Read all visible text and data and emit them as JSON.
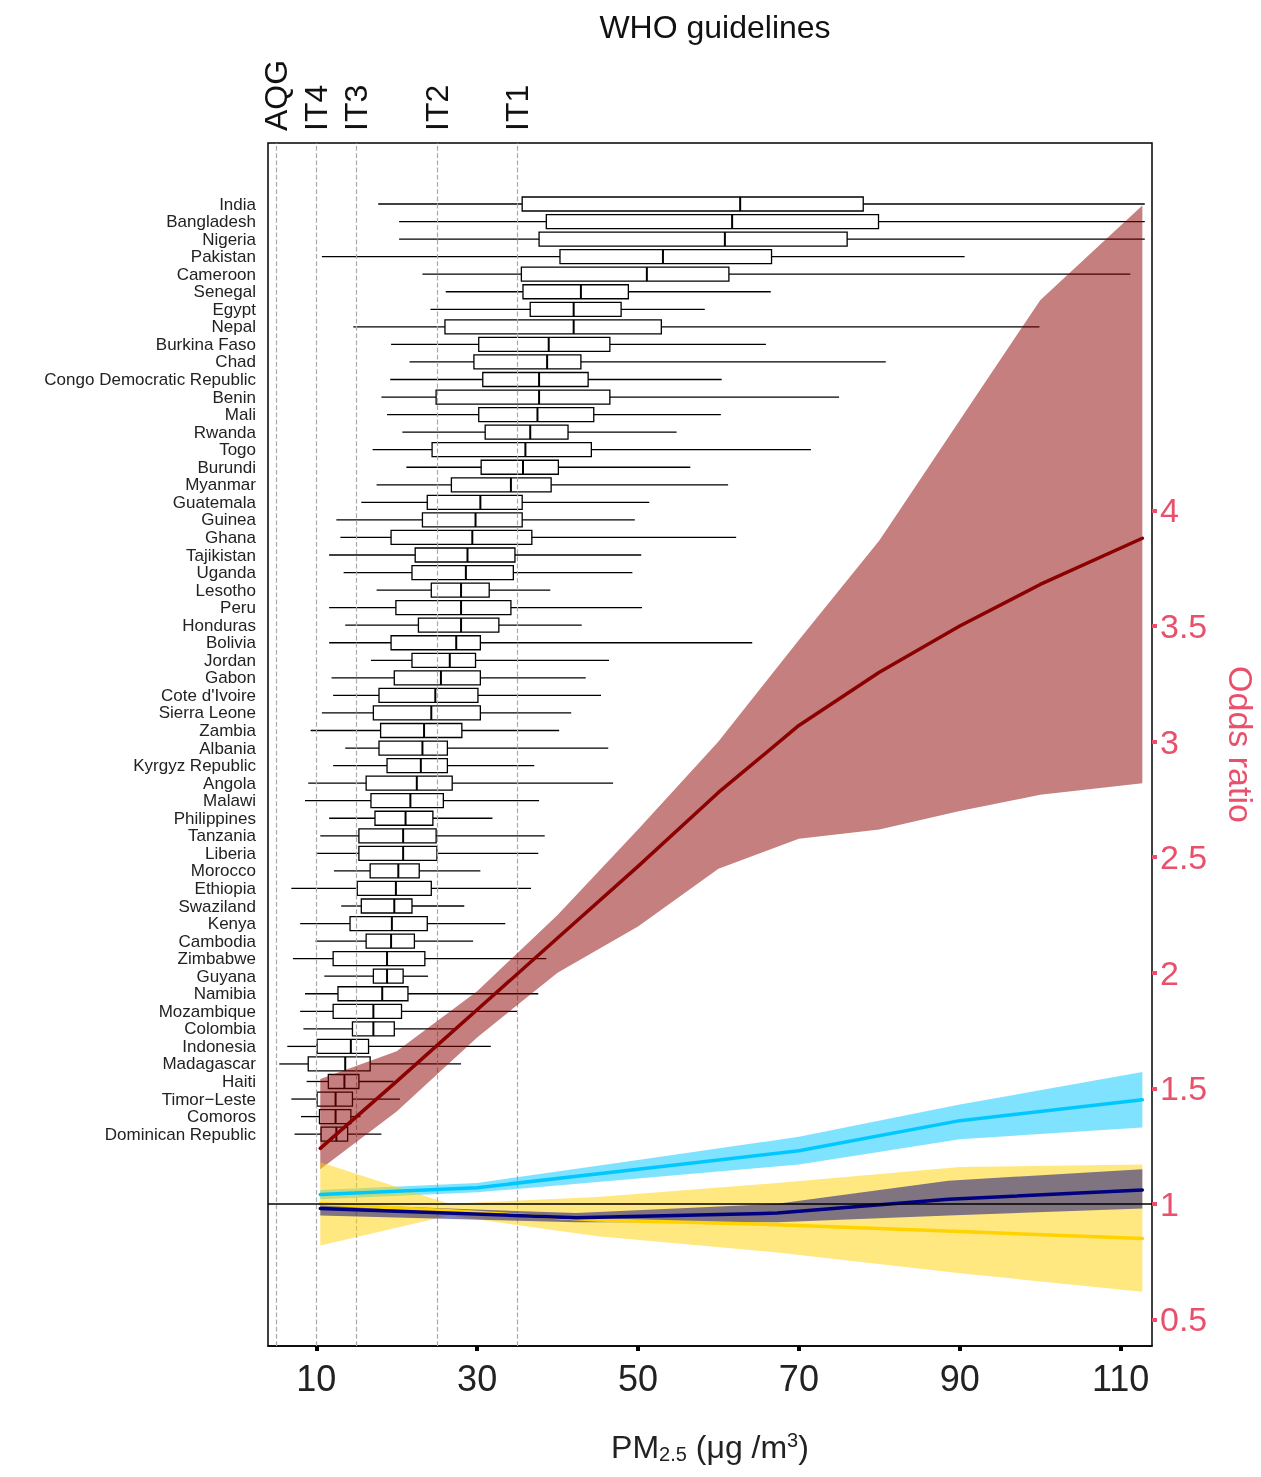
{
  "chart_data": [
    {
      "type": "box",
      "orientation": "horizontal",
      "title": "WHO guidelines",
      "tick_labels": "y",
      "categories": [
        "India",
        "Bangladesh",
        "Nigeria",
        "Pakistan",
        "Cameroon",
        "Senegal",
        "Egypt",
        "Nepal",
        "Burkina Faso",
        "Chad",
        "Congo Democratic Republic",
        "Benin",
        "Mali",
        "Rwanda",
        "Togo",
        "Burundi",
        "Myanmar",
        "Guatemala",
        "Guinea",
        "Ghana",
        "Tajikistan",
        "Uganda",
        "Lesotho",
        "Peru",
        "Honduras",
        "Bolivia",
        "Jordan",
        "Gabon",
        "Cote d'Ivoire",
        "Sierra Leone",
        "Zambia",
        "Albania",
        "Kyrgyz Republic",
        "Angola",
        "Malawi",
        "Philippines",
        "Tanzania",
        "Liberia",
        "Morocco",
        "Ethiopia",
        "Swaziland",
        "Kenya",
        "Cambodia",
        "Zimbabwe",
        "Guyana",
        "Namibia",
        "Mozambique",
        "Colombia",
        "Indonesia",
        "Madagascar",
        "Haiti",
        "Timor−Leste",
        "Comoros",
        "Dominican Republic"
      ],
      "xlim": [
        4,
        113.9
      ],
      "ref_lines": [
        {
          "axis": "x",
          "value": 5,
          "label": "AQG",
          "color": "#aaaaaa",
          "line_style": "dashed"
        },
        {
          "axis": "x",
          "value": 10,
          "label": "IT4",
          "color": "#aaaaaa",
          "line_style": "dashed"
        },
        {
          "axis": "x",
          "value": 15,
          "label": "IT3",
          "color": "#aaaaaa",
          "line_style": "dashed"
        },
        {
          "axis": "x",
          "value": 25,
          "label": "IT2",
          "color": "#aaaaaa",
          "line_style": "dashed"
        },
        {
          "axis": "x",
          "value": 35,
          "label": "IT1",
          "color": "#aaaaaa",
          "line_style": "dashed"
        }
      ],
      "series": [
        {
          "type": "box",
          "color": "#000000",
          "boxes": [
            {
              "low": 17.7,
              "q1": 35.6,
              "median": 62.7,
              "q3": 78,
              "high": 113
            },
            {
              "low": 20.3,
              "q1": 38.6,
              "median": 61.7,
              "q3": 79.9,
              "high": 113
            },
            {
              "low": 20.3,
              "q1": 37.7,
              "median": 60.8,
              "q3": 76,
              "high": 113
            },
            {
              "low": 10.7,
              "q1": 40.3,
              "median": 53.1,
              "q3": 66.6,
              "high": 90.6
            },
            {
              "low": 23.2,
              "q1": 35.5,
              "median": 51.1,
              "q3": 61.3,
              "high": 111.2
            },
            {
              "low": 26.1,
              "q1": 35.7,
              "median": 42.9,
              "q3": 48.8,
              "high": 66.5
            },
            {
              "low": 24.2,
              "q1": 36.6,
              "median": 42,
              "q3": 47.9,
              "high": 58.3
            },
            {
              "low": 14.6,
              "q1": 26,
              "median": 42,
              "q3": 52.9,
              "high": 99.9
            },
            {
              "low": 19.3,
              "q1": 30.2,
              "median": 38.9,
              "q3": 46.5,
              "high": 65.9
            },
            {
              "low": 21.6,
              "q1": 29.6,
              "median": 38.7,
              "q3": 42.9,
              "high": 80.8
            },
            {
              "low": 19.2,
              "q1": 30.7,
              "median": 37.7,
              "q3": 43.8,
              "high": 60.4
            },
            {
              "low": 18.1,
              "q1": 24.9,
              "median": 37.7,
              "q3": 46.5,
              "high": 75
            },
            {
              "low": 18.8,
              "q1": 30.2,
              "median": 37.5,
              "q3": 44.5,
              "high": 60.3
            },
            {
              "low": 20.7,
              "q1": 31,
              "median": 36.6,
              "q3": 41.3,
              "high": 54.8
            },
            {
              "low": 17,
              "q1": 24.4,
              "median": 36,
              "q3": 44.2,
              "high": 71.5
            },
            {
              "low": 21.2,
              "q1": 30.5,
              "median": 35.7,
              "q3": 40.1,
              "high": 56.5
            },
            {
              "low": 17.5,
              "q1": 26.8,
              "median": 34.2,
              "q3": 39.2,
              "high": 61.2
            },
            {
              "low": 15.6,
              "q1": 23.8,
              "median": 30.4,
              "q3": 35.6,
              "high": 51.4
            },
            {
              "low": 12.5,
              "q1": 23.2,
              "median": 29.8,
              "q3": 35.6,
              "high": 49.6
            },
            {
              "low": 13,
              "q1": 19.3,
              "median": 29.4,
              "q3": 36.8,
              "high": 62.2
            },
            {
              "low": 11.6,
              "q1": 22.3,
              "median": 28.8,
              "q3": 34.7,
              "high": 50.4
            },
            {
              "low": 13.4,
              "q1": 21.9,
              "median": 28.6,
              "q3": 34.5,
              "high": 49.3
            },
            {
              "low": 17.5,
              "q1": 24.3,
              "median": 28,
              "q3": 31.5,
              "high": 39.1
            },
            {
              "low": 11.6,
              "q1": 19.9,
              "median": 28,
              "q3": 34.2,
              "high": 50.5
            },
            {
              "low": 13.6,
              "q1": 22.7,
              "median": 28,
              "q3": 32.7,
              "high": 43
            },
            {
              "low": 11.6,
              "q1": 19.3,
              "median": 27.4,
              "q3": 30.4,
              "high": 64.2
            },
            {
              "low": 16.8,
              "q1": 21.9,
              "median": 26.6,
              "q3": 29.8,
              "high": 46.4
            },
            {
              "low": 11.9,
              "q1": 19.7,
              "median": 25.5,
              "q3": 30.4,
              "high": 43.5
            },
            {
              "low": 12.1,
              "q1": 17.8,
              "median": 24.8,
              "q3": 30.1,
              "high": 45.4
            },
            {
              "low": 10.7,
              "q1": 17.1,
              "median": 24.3,
              "q3": 30.4,
              "high": 41.7
            },
            {
              "low": 9.3,
              "q1": 18,
              "median": 23.4,
              "q3": 28.1,
              "high": 40.2
            },
            {
              "low": 13.6,
              "q1": 17.8,
              "median": 23.2,
              "q3": 26.3,
              "high": 46.3
            },
            {
              "low": 12.1,
              "q1": 18.8,
              "median": 23,
              "q3": 26.3,
              "high": 37.1
            },
            {
              "low": 9,
              "q1": 16.2,
              "median": 22.5,
              "q3": 26.9,
              "high": 46.9
            },
            {
              "low": 8.6,
              "q1": 16.8,
              "median": 21.7,
              "q3": 25.8,
              "high": 37.7
            },
            {
              "low": 11.6,
              "q1": 17.3,
              "median": 21.1,
              "q3": 24.5,
              "high": 31.9
            },
            {
              "low": 10.5,
              "q1": 15.3,
              "median": 20.8,
              "q3": 24.9,
              "high": 38.4
            },
            {
              "low": 10.1,
              "q1": 15.3,
              "median": 20.8,
              "q3": 25,
              "high": 37.6
            },
            {
              "low": 12.2,
              "q1": 16.7,
              "median": 20.2,
              "q3": 22.8,
              "high": 30.4
            },
            {
              "low": 6.9,
              "q1": 15.1,
              "median": 19.9,
              "q3": 24.3,
              "high": 36.7
            },
            {
              "low": 13.1,
              "q1": 15.6,
              "median": 19.7,
              "q3": 21.9,
              "high": 28.4
            },
            {
              "low": 8,
              "q1": 14.2,
              "median": 19.4,
              "q3": 23.8,
              "high": 33.5
            },
            {
              "low": 9.9,
              "q1": 16.2,
              "median": 19.3,
              "q3": 22.2,
              "high": 29.5
            },
            {
              "low": 7.1,
              "q1": 12.1,
              "median": 18.8,
              "q3": 23.5,
              "high": 38.6
            },
            {
              "low": 11,
              "q1": 17.1,
              "median": 18.8,
              "q3": 20.8,
              "high": 23.9
            },
            {
              "low": 8.6,
              "q1": 12.7,
              "median": 18.2,
              "q3": 21.4,
              "high": 37.6
            },
            {
              "low": 8,
              "q1": 12.1,
              "median": 17.1,
              "q3": 20.6,
              "high": 35
            },
            {
              "low": 8.4,
              "q1": 14.5,
              "median": 17.1,
              "q3": 19.7,
              "high": 27.3
            },
            {
              "low": 6.4,
              "q1": 10.1,
              "median": 14.3,
              "q3": 16.5,
              "high": 31.7
            },
            {
              "low": 5.4,
              "q1": 9,
              "median": 13.6,
              "q3": 16.7,
              "high": 28
            },
            {
              "low": 8.8,
              "q1": 11.5,
              "median": 13.5,
              "q3": 15.3,
              "high": 19.6
            },
            {
              "low": 6.9,
              "q1": 10.1,
              "median": 12.4,
              "q3": 14.5,
              "high": 20.4
            },
            {
              "low": 8.1,
              "q1": 10.4,
              "median": 12.4,
              "q3": 14.3,
              "high": 15.5
            },
            {
              "low": 7.3,
              "q1": 10.6,
              "median": 12.5,
              "q3": 13.9,
              "high": 18.1
            }
          ]
        }
      ]
    },
    {
      "type": "line",
      "xlabel": "PM$_{2.5}$ (μg /m$^{3}$)",
      "y2label": "Odds ratio",
      "xlim": [
        4,
        113.9
      ],
      "xticks": [
        10,
        30,
        50,
        70,
        90,
        110
      ],
      "y2lim": [
        0.385,
        5.59
      ],
      "y2ticks": [
        0.5,
        1,
        1.5,
        2,
        2.5,
        3,
        3.5,
        4
      ],
      "ref_lines": [
        {
          "axis": "y2",
          "value": 1,
          "color": "#000000",
          "line_style": "solid"
        }
      ],
      "series": [
        {
          "type": "line",
          "axis": "y2",
          "color": "#8b0000",
          "x": [
            10.5,
            20,
            30,
            40,
            50,
            60,
            70,
            80,
            90,
            100,
            112.7
          ],
          "values": [
            1.24,
            1.53,
            1.84,
            2.15,
            2.46,
            2.78,
            3.07,
            3.3,
            3.5,
            3.68,
            3.88
          ],
          "lower": [
            1.15,
            1.4,
            1.72,
            2,
            2.2,
            2.45,
            2.58,
            2.62,
            2.7,
            2.77,
            2.82
          ],
          "upper": [
            1.54,
            1.66,
            1.92,
            2.25,
            2.62,
            3,
            3.44,
            3.87,
            4.39,
            4.91,
            5.32
          ]
        },
        {
          "type": "line",
          "axis": "y2",
          "color": "#00c8ff",
          "x": [
            10.5,
            30,
            50,
            70,
            90,
            112.7
          ],
          "values": [
            1.04,
            1.07,
            1.15,
            1.23,
            1.36,
            1.45
          ],
          "lower": [
            1.02,
            1.05,
            1.11,
            1.17,
            1.28,
            1.33
          ],
          "upper": [
            1.06,
            1.09,
            1.19,
            1.29,
            1.43,
            1.57
          ]
        },
        {
          "type": "line",
          "axis": "y2",
          "color": "#ffd200",
          "x": [
            10.5,
            26.5,
            45,
            67.3,
            90,
            112.7
          ],
          "values": [
            1,
            0.97,
            0.93,
            0.91,
            0.88,
            0.85
          ],
          "lower": [
            0.82,
            0.95,
            0.86,
            0.79,
            0.7,
            0.62
          ],
          "upper": [
            1.18,
            1,
            1.03,
            1.09,
            1.16,
            1.17
          ]
        },
        {
          "type": "line",
          "axis": "y2",
          "color": "#000080",
          "x": [
            10.5,
            42.3,
            67.3,
            88.6,
            112.7
          ],
          "values": [
            0.98,
            0.94,
            0.96,
            1.02,
            1.06
          ],
          "lower": [
            0.95,
            0.92,
            0.92,
            0.95,
            0.98
          ],
          "upper": [
            1,
            0.96,
            1,
            1.1,
            1.15
          ]
        }
      ]
    }
  ]
}
